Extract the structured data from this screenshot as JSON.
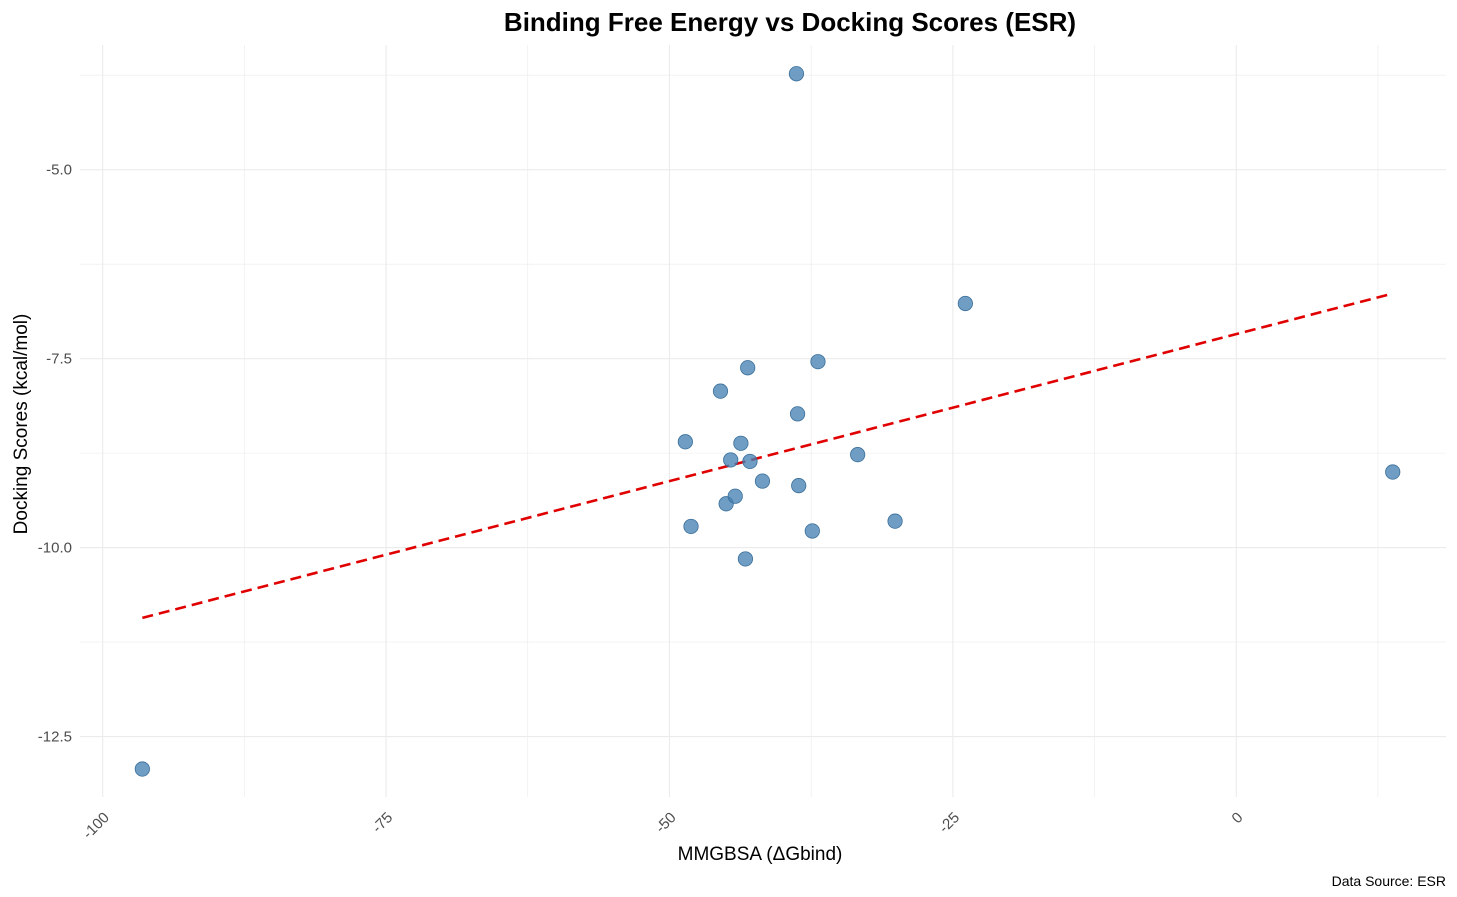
{
  "chart_data": {
    "type": "scatter",
    "title": "Binding Free Energy vs Docking Scores (ESR)",
    "xlabel": "MMGBSA (ΔGbind)",
    "ylabel": "Docking Scores (kcal/mol)",
    "caption": "Data Source: ESR",
    "xlim": [
      -102,
      18.5
    ],
    "ylim": [
      -13.3,
      -3.35
    ],
    "x_ticks": [
      -100,
      -75,
      -50,
      -25,
      0
    ],
    "x_tick_labels": [
      "-100",
      "-75",
      "-50",
      "-25",
      "0"
    ],
    "y_ticks": [
      -12.5,
      -10.0,
      -7.5,
      -5.0
    ],
    "y_tick_labels": [
      "-12.5",
      "-10.0",
      "-7.5",
      "-5.0"
    ],
    "grid": true,
    "point_color": "#4682b4",
    "trend_color": "#e00000",
    "series": [
      {
        "points": [
          {
            "x": -96.5,
            "y": -12.93
          },
          {
            "x": -48.6,
            "y": -8.6
          },
          {
            "x": -48.1,
            "y": -9.72
          },
          {
            "x": -45.5,
            "y": -7.93
          },
          {
            "x": -45.0,
            "y": -9.42
          },
          {
            "x": -44.6,
            "y": -8.84
          },
          {
            "x": -44.2,
            "y": -9.32
          },
          {
            "x": -43.7,
            "y": -8.62
          },
          {
            "x": -43.3,
            "y": -10.15
          },
          {
            "x": -43.1,
            "y": -7.62
          },
          {
            "x": -42.9,
            "y": -8.86
          },
          {
            "x": -41.8,
            "y": -9.12
          },
          {
            "x": -38.8,
            "y": -3.73
          },
          {
            "x": -38.7,
            "y": -8.23
          },
          {
            "x": -38.6,
            "y": -9.18
          },
          {
            "x": -37.4,
            "y": -9.78
          },
          {
            "x": -36.9,
            "y": -7.54
          },
          {
            "x": -33.4,
            "y": -8.77
          },
          {
            "x": -30.1,
            "y": -9.65
          },
          {
            "x": -23.9,
            "y": -6.77
          },
          {
            "x": 13.8,
            "y": -9.0
          }
        ]
      }
    ],
    "trend_line": {
      "style": "dashed",
      "x": [
        -96.5,
        13.5
      ],
      "y": [
        -10.93,
        -6.65
      ]
    }
  }
}
